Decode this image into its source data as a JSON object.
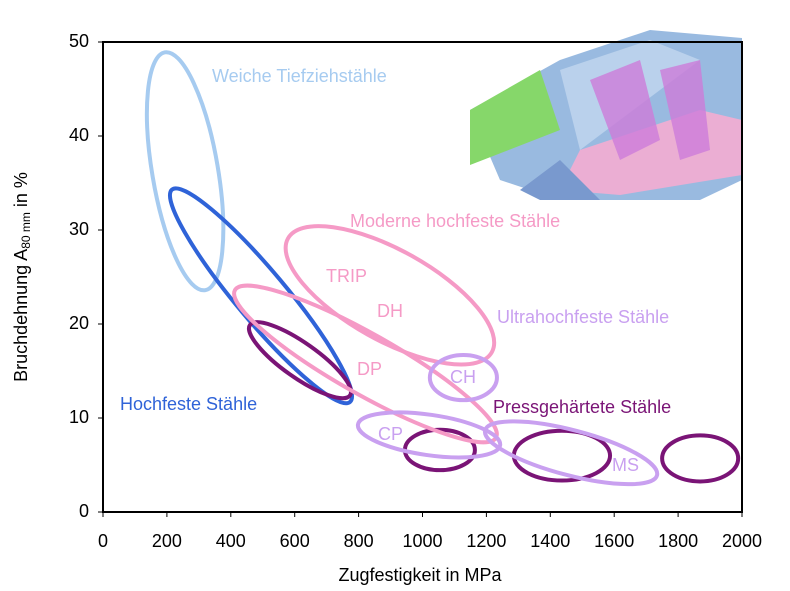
{
  "chart_data": {
    "type": "ellipse-regions",
    "x_label": "Zugfestigkeit in MPa",
    "y_label": {
      "main": "Bruchdehnung A",
      "sub": "80 mm",
      "unit": " in %"
    },
    "xlim": [
      0,
      2000
    ],
    "xticks": [
      0,
      200,
      400,
      600,
      800,
      1000,
      1200,
      1400,
      1600,
      1800,
      2000
    ],
    "ylim": [
      0,
      50
    ],
    "yticks": [
      0,
      10,
      20,
      30,
      40,
      50
    ],
    "series": [
      {
        "name": "Weiche Tiefziehstähle",
        "color": "#a6cbf0",
        "regions": [
          {
            "from": [
              194,
              48.9
            ],
            "to": [
              320,
              23.6
            ],
            "width": 7
          }
        ]
      },
      {
        "name": "Hochfeste Stähle",
        "color": "#2f63d8",
        "regions": [
          {
            "from": [
              216,
              34.3
            ],
            "to": [
              773,
              11.7
            ],
            "width": 5.3
          }
        ]
      },
      {
        "name": "Pressgehärtete Stähle",
        "color": "#7a1476",
        "regions": [
          {
            "from": [
              460,
              19.9
            ],
            "to": [
              773,
              12.4
            ],
            "width": 3.7
          },
          {
            "from": [
              945,
              6.6
            ],
            "to": [
              1164,
              6.6
            ],
            "width": 4.3
          },
          {
            "from": [
              1286,
              6.0
            ],
            "to": [
              1587,
              6.0
            ],
            "width": 5.3
          },
          {
            "from": [
              1750,
              5.7
            ],
            "to": [
              1988,
              5.7
            ],
            "width": 4.9
          }
        ]
      },
      {
        "name": "Moderne hochfeste Stähle",
        "color": "#f59ac6",
        "regions": [
          {
            "from": [
              579,
              29.1
            ],
            "to": [
              1217,
              17.0
            ],
            "width": 9.6
          },
          {
            "from": [
              413,
              23.6
            ],
            "to": [
              1230,
              7.9
            ],
            "width": 6.4
          }
        ]
      },
      {
        "name": "Ultrahochfeste Stähle",
        "color": "#c9a0f0",
        "regions": [
          {
            "from": [
              1023,
              14.3
            ],
            "to": [
              1233,
              14.3
            ],
            "width": 4.8
          },
          {
            "from": [
              798,
              9.3
            ],
            "to": [
              1243,
              7.1
            ],
            "width": 4.3
          },
          {
            "from": [
              1196,
              8.7
            ],
            "to": [
              1734,
              3.9
            ],
            "width": 4.8
          }
        ]
      }
    ],
    "annotations": [
      {
        "text": "TRIP",
        "color": "#f59ac6"
      },
      {
        "text": "DH",
        "color": "#f59ac6"
      },
      {
        "text": "DP",
        "color": "#f59ac6"
      },
      {
        "text": "CH",
        "color": "#c9a0f0"
      },
      {
        "text": "CP",
        "color": "#c9a0f0"
      },
      {
        "text": "MS",
        "color": "#c9a0f0"
      }
    ]
  }
}
